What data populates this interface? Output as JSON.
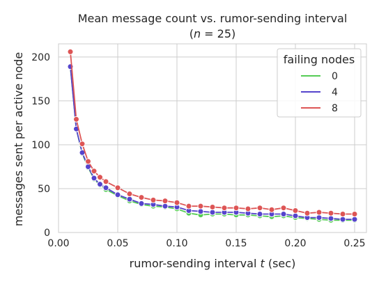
{
  "chart_data": {
    "type": "line",
    "title_line1": "Mean message count vs. rumor-sending interval",
    "title_line2_prefix": "(",
    "title_line2_var": "n",
    "title_line2_suffix": " = 25)",
    "xlabel_prefix": "rumor-sending interval ",
    "xlabel_var": "t",
    "xlabel_suffix": " (sec)",
    "ylabel": "messages sent per active node",
    "xlim": [
      0.0,
      0.26
    ],
    "ylim": [
      0,
      215
    ],
    "xticks": [
      0.0,
      0.05,
      0.1,
      0.15,
      0.2,
      0.25
    ],
    "xtick_labels": [
      "0.00",
      "0.05",
      "0.10",
      "0.15",
      "0.20",
      "0.25"
    ],
    "yticks": [
      0,
      50,
      100,
      150,
      200
    ],
    "ytick_labels": [
      "0",
      "50",
      "100",
      "150",
      "200"
    ],
    "grid": true,
    "legend": {
      "title": "failing nodes",
      "placement": "top-right"
    },
    "x": [
      0.01,
      0.015,
      0.02,
      0.025,
      0.03,
      0.035,
      0.04,
      0.05,
      0.06,
      0.07,
      0.08,
      0.09,
      0.1,
      0.11,
      0.12,
      0.13,
      0.14,
      0.15,
      0.16,
      0.17,
      0.18,
      0.19,
      0.2,
      0.21,
      0.22,
      0.23,
      0.24,
      0.25
    ],
    "series": [
      {
        "name": "0",
        "color": "#55cc55",
        "values": [
          189,
          118,
          90,
          74,
          61,
          54,
          49,
          42,
          36,
          32,
          30,
          29,
          27,
          22,
          20,
          21,
          21,
          20,
          20,
          19,
          18,
          19,
          17,
          16,
          15,
          14,
          14,
          14
        ]
      },
      {
        "name": "4",
        "color": "#5544cc",
        "values": [
          189,
          118,
          91,
          75,
          62,
          55,
          51,
          43,
          38,
          33,
          32,
          30,
          29,
          25,
          24,
          23,
          23,
          23,
          22,
          21,
          21,
          21,
          19,
          17,
          17,
          16,
          15,
          15
        ]
      },
      {
        "name": "8",
        "color": "#dd5555",
        "values": [
          206,
          129,
          101,
          81,
          70,
          63,
          58,
          51,
          44,
          40,
          37,
          36,
          34,
          30,
          30,
          29,
          28,
          28,
          27,
          28,
          26,
          28,
          25,
          22,
          23,
          22,
          21,
          21
        ]
      }
    ]
  }
}
